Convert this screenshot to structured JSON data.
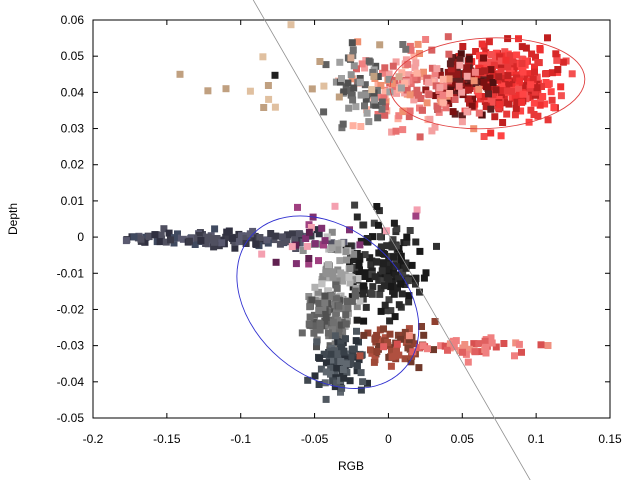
{
  "chart_data": {
    "type": "scatter",
    "title": "",
    "xlabel": "RGB",
    "ylabel": "Depth",
    "xlim": [
      -0.2,
      0.15
    ],
    "ylim": [
      -0.05,
      0.06
    ],
    "xticks": [
      -0.2,
      -0.15,
      -0.1,
      -0.05,
      0,
      0.05,
      0.1,
      0.15
    ],
    "yticks": [
      -0.05,
      -0.04,
      -0.03,
      -0.02,
      -0.01,
      0,
      0.01,
      0.02,
      0.03,
      0.04,
      0.05,
      0.06
    ],
    "xtick_labels": [
      "-0.2",
      "-0.15",
      "-0.1",
      "-0.05",
      "0",
      "0.05",
      "0.1",
      "0.15"
    ],
    "ytick_labels": [
      "-0.05",
      "-0.04",
      "-0.03",
      "-0.02",
      "-0.01",
      "0",
      "0.01",
      "0.02",
      "0.03",
      "0.04",
      "0.05",
      "0.06"
    ],
    "grid": false,
    "legend": "none",
    "marker": "square",
    "clusters": [
      {
        "colors": [
          "#f03030",
          "#e83838",
          "#f45050",
          "#d82828",
          "#ff4444",
          "#c02020"
        ],
        "cx": 0.082,
        "cy": 0.0435,
        "sx": 0.016,
        "sy": 0.0052,
        "count": 300
      },
      {
        "colors": [
          "#7a1010",
          "#501010",
          "#901818",
          "#b02020",
          "#602020"
        ],
        "cx": 0.052,
        "cy": 0.043,
        "sx": 0.012,
        "sy": 0.0045,
        "count": 90
      },
      {
        "colors": [
          "#f08080",
          "#e87070",
          "#f4a0a0",
          "#d86060",
          "#ffb0a0",
          "#f09070"
        ],
        "cx": 0.018,
        "cy": 0.0405,
        "sx": 0.02,
        "sy": 0.006,
        "count": 150
      },
      {
        "colors": [
          "#707070",
          "#909090",
          "#606060",
          "#a0a0a0",
          "#505050"
        ],
        "cx": -0.016,
        "cy": 0.041,
        "sx": 0.012,
        "sy": 0.0055,
        "count": 60
      },
      {
        "colors": [
          "#303040",
          "#505060",
          "#404a60",
          "#3a3a48",
          "#5a5a70"
        ],
        "cx": -0.11,
        "cy": -0.0005,
        "sx": 0.035,
        "sy": 0.001,
        "count": 120
      },
      {
        "colors": [
          "#202020",
          "#303030",
          "#181818",
          "#404040",
          "#282828"
        ],
        "cx": -0.003,
        "cy": -0.0085,
        "sx": 0.014,
        "sy": 0.006,
        "count": 160
      },
      {
        "colors": [
          "#a0a0a0",
          "#b0b0b0",
          "#909090",
          "#c0c0c0",
          "#888888"
        ],
        "cx": -0.036,
        "cy": -0.0125,
        "sx": 0.008,
        "sy": 0.006,
        "count": 90
      },
      {
        "colors": [
          "#606060",
          "#707070",
          "#7a7a7a",
          "#505050",
          "#686868"
        ],
        "cx": -0.04,
        "cy": -0.022,
        "sx": 0.008,
        "sy": 0.004,
        "count": 90
      },
      {
        "colors": [
          "#404850",
          "#505860",
          "#384048",
          "#606870",
          "#2a3038"
        ],
        "cx": -0.034,
        "cy": -0.034,
        "sx": 0.008,
        "sy": 0.004,
        "count": 110
      },
      {
        "colors": [
          "#904030",
          "#a04a38",
          "#804030",
          "#b05040",
          "#70382a"
        ],
        "cx": 0.002,
        "cy": -0.03,
        "sx": 0.012,
        "sy": 0.0025,
        "count": 60
      },
      {
        "colors": [
          "#f08080",
          "#e06060",
          "#d85050",
          "#f09080"
        ],
        "cx": 0.055,
        "cy": -0.0305,
        "sx": 0.02,
        "sy": 0.0015,
        "count": 45
      },
      {
        "colors": [
          "#803070",
          "#602050",
          "#a04080",
          "#f4a0b0"
        ],
        "cx": -0.04,
        "cy": 0.0015,
        "sx": 0.03,
        "sy": 0.004,
        "count": 25
      },
      {
        "colors": [
          "#c0a080",
          "#d4a890",
          "#e0c0a0",
          "#202020"
        ],
        "cx": -0.045,
        "cy": 0.042,
        "sx": 0.04,
        "sy": 0.008,
        "count": 20
      }
    ],
    "ellipses": [
      {
        "color": "#e04040",
        "cx": 0.067,
        "cy": 0.0425,
        "rx": 0.066,
        "ry": 0.0125,
        "tilt_deg": -3
      },
      {
        "color": "#3030d0",
        "cx": -0.041,
        "cy": -0.018,
        "rx": 0.05,
        "ry": 0.028,
        "tilt_deg": -50
      }
    ],
    "line": {
      "color": "#909090",
      "p1": [
        -0.095,
        0.068
      ],
      "p2": [
        0.1,
        -0.07
      ]
    }
  }
}
